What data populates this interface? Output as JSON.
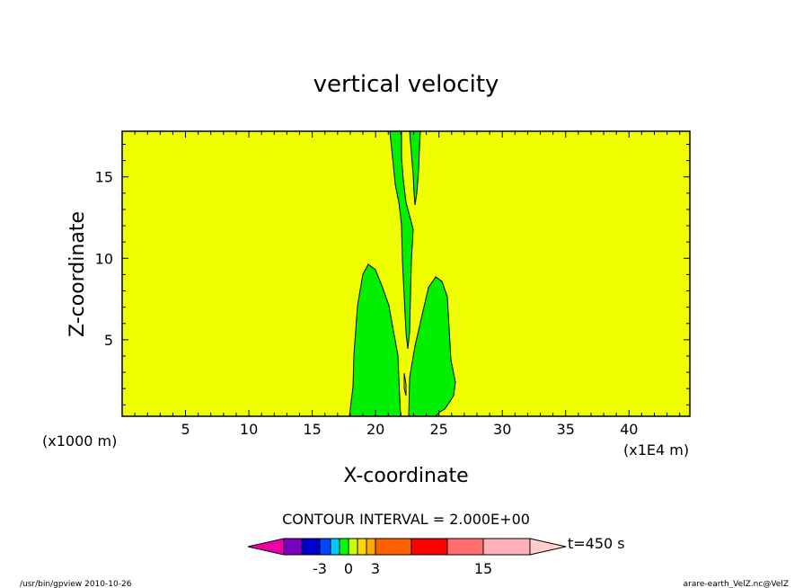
{
  "chart_data": {
    "type": "contour",
    "title": "vertical velocity",
    "xlabel": "X-coordinate",
    "ylabel": "Z-coordinate",
    "x_unit": "(x1E4 m)",
    "y_unit": "(x1000 m)",
    "xlim": [
      0,
      44.8
    ],
    "ylim": [
      0.3,
      17.8
    ],
    "x_ticks": [
      "5",
      "10",
      "15",
      "20",
      "25",
      "30",
      "35",
      "40"
    ],
    "y_ticks": [
      "5",
      "10",
      "15"
    ],
    "background_level_color": "#f0ff00",
    "contour_interval": "CONTOUR INTERVAL = 2.000E+00",
    "time_label": "t=450 s",
    "colorbar": {
      "colors": [
        "#ee00a4",
        "#7a00c4",
        "#0000c8",
        "#0045ff",
        "#00c8ff",
        "#00ff00",
        "#c8ff00",
        "#ffd800",
        "#ffaa00",
        "#ff6000",
        "#ff0000",
        "#ff6f6f",
        "#ffb0b8",
        "#ffd0cc"
      ],
      "labels": [
        "-3",
        "0",
        "3",
        "15"
      ]
    },
    "regions": [
      {
        "name": "left lobe",
        "level_color": "#00f000"
      },
      {
        "name": "right lobe",
        "level_color": "#00f000"
      },
      {
        "name": "central upper band",
        "level_color": "#00f000"
      },
      {
        "name": "upper right narrow band",
        "level_color": "#00f000"
      }
    ]
  },
  "footer": {
    "left": "/usr/bin/gpview  2010-10-26",
    "right": "arare-earth_VelZ.nc@VelZ"
  }
}
